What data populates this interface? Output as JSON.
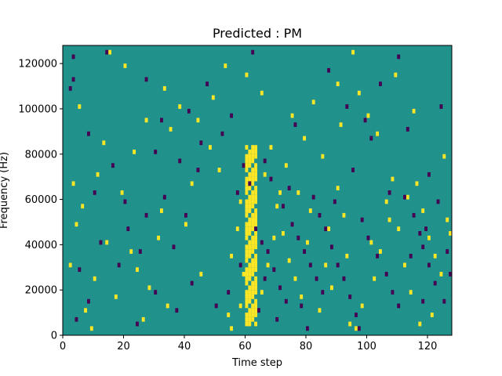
{
  "chart_data": {
    "type": "heatmap",
    "title": "Predicted : PM",
    "xlabel": "Time step",
    "ylabel": "Frequency (Hz)",
    "xlim": [
      0,
      128
    ],
    "ylim": [
      0,
      128000
    ],
    "x_ticks": [
      0,
      20,
      40,
      60,
      80,
      100,
      120
    ],
    "x_tick_labels": [
      "0",
      "20",
      "40",
      "60",
      "80",
      "100",
      "120"
    ],
    "y_ticks": [
      0,
      20000,
      40000,
      60000,
      80000,
      100000,
      120000
    ],
    "y_tick_labels": [
      "0",
      "20000",
      "40000",
      "60000",
      "80000",
      "100000",
      "120000"
    ],
    "grid": false,
    "colormap": "viridis",
    "colors": {
      "background": "#21918c",
      "high": "#fde725",
      "low": "#440154"
    },
    "background_value": 0,
    "n_time_steps": 128,
    "n_freq_bins": 64,
    "cell_size": {
      "time": 1,
      "frequency": 2000
    },
    "bright_run": {
      "t_start": 60,
      "t_end": 64,
      "f_start": 4000,
      "f_end": 84000
    },
    "dark_cells": [
      [
        3,
        122000
      ],
      [
        3,
        112000
      ],
      [
        2,
        108000
      ],
      [
        14,
        124000
      ],
      [
        27,
        112000
      ],
      [
        41,
        98000
      ],
      [
        32,
        94000
      ],
      [
        47,
        110000
      ],
      [
        55,
        96000
      ],
      [
        8,
        88000
      ],
      [
        30,
        80000
      ],
      [
        38,
        76000
      ],
      [
        44,
        72000
      ],
      [
        16,
        74000
      ],
      [
        10,
        62000
      ],
      [
        33,
        60000
      ],
      [
        27,
        52000
      ],
      [
        21,
        46000
      ],
      [
        12,
        40000
      ],
      [
        36,
        38000
      ],
      [
        25,
        36000
      ],
      [
        18,
        30000
      ],
      [
        5,
        28000
      ],
      [
        42,
        22000
      ],
      [
        30,
        18000
      ],
      [
        8,
        14000
      ],
      [
        50,
        12000
      ],
      [
        37,
        10000
      ],
      [
        4,
        6000
      ],
      [
        24,
        4000
      ],
      [
        57,
        62000
      ],
      [
        59,
        74000
      ],
      [
        66,
        76000
      ],
      [
        68,
        68000
      ],
      [
        72,
        56000
      ],
      [
        75,
        48000
      ],
      [
        77,
        42000
      ],
      [
        79,
        36000
      ],
      [
        81,
        30000
      ],
      [
        83,
        24000
      ],
      [
        85,
        18000
      ],
      [
        65,
        40000
      ],
      [
        67,
        36000
      ],
      [
        69,
        28000
      ],
      [
        71,
        20000
      ],
      [
        73,
        14000
      ],
      [
        70,
        6000
      ],
      [
        64,
        10000
      ],
      [
        86,
        46000
      ],
      [
        88,
        38000
      ],
      [
        90,
        30000
      ],
      [
        92,
        24000
      ],
      [
        94,
        16000
      ],
      [
        96,
        8000
      ],
      [
        97,
        2000
      ],
      [
        80,
        2000
      ],
      [
        82,
        60000
      ],
      [
        84,
        52000
      ],
      [
        100,
        42000
      ],
      [
        103,
        34000
      ],
      [
        106,
        26000
      ],
      [
        108,
        18000
      ],
      [
        110,
        12000
      ],
      [
        112,
        60000
      ],
      [
        115,
        52000
      ],
      [
        117,
        44000
      ],
      [
        118,
        38000
      ],
      [
        120,
        30000
      ],
      [
        122,
        22000
      ],
      [
        125,
        14000
      ],
      [
        127,
        26000
      ],
      [
        101,
        86000
      ],
      [
        99,
        94000
      ],
      [
        104,
        110000
      ],
      [
        110,
        122000
      ],
      [
        113,
        90000
      ],
      [
        120,
        70000
      ],
      [
        124,
        100000
      ],
      [
        93,
        100000
      ],
      [
        87,
        116000
      ],
      [
        76,
        92000
      ],
      [
        62,
        124000
      ],
      [
        52,
        88000
      ],
      [
        45,
        84000
      ],
      [
        54,
        18000
      ],
      [
        58,
        30000
      ],
      [
        61,
        66000
      ],
      [
        74,
        64000
      ],
      [
        95,
        72000
      ],
      [
        107,
        62000
      ],
      [
        114,
        34000
      ],
      [
        119,
        46000
      ],
      [
        123,
        58000
      ],
      [
        126,
        36000
      ],
      [
        118,
        14000
      ],
      [
        98,
        50000
      ],
      [
        89,
        58000
      ],
      [
        78,
        12000
      ],
      [
        66,
        24000
      ],
      [
        63,
        46000
      ],
      [
        40,
        52000
      ],
      [
        20,
        58000
      ]
    ],
    "bright_cells": [
      [
        15,
        124000
      ],
      [
        20,
        118000
      ],
      [
        33,
        108000
      ],
      [
        38,
        100000
      ],
      [
        53,
        118000
      ],
      [
        60,
        114000
      ],
      [
        49,
        104000
      ],
      [
        44,
        94000
      ],
      [
        5,
        100000
      ],
      [
        35,
        90000
      ],
      [
        23,
        80000
      ],
      [
        48,
        82000
      ],
      [
        11,
        70000
      ],
      [
        3,
        66000
      ],
      [
        19,
        62000
      ],
      [
        6,
        56000
      ],
      [
        32,
        54000
      ],
      [
        40,
        48000
      ],
      [
        14,
        40000
      ],
      [
        22,
        36000
      ],
      [
        2,
        30000
      ],
      [
        10,
        24000
      ],
      [
        28,
        20000
      ],
      [
        45,
        26000
      ],
      [
        17,
        16000
      ],
      [
        34,
        12000
      ],
      [
        7,
        10000
      ],
      [
        26,
        6000
      ],
      [
        9,
        2000
      ],
      [
        55,
        34000
      ],
      [
        57,
        46000
      ],
      [
        58,
        58000
      ],
      [
        66,
        70000
      ],
      [
        68,
        82000
      ],
      [
        70,
        56000
      ],
      [
        72,
        44000
      ],
      [
        74,
        32000
      ],
      [
        76,
        24000
      ],
      [
        78,
        16000
      ],
      [
        80,
        40000
      ],
      [
        84,
        10000
      ],
      [
        86,
        30000
      ],
      [
        88,
        20000
      ],
      [
        90,
        64000
      ],
      [
        92,
        52000
      ],
      [
        94,
        4000
      ],
      [
        96,
        2000
      ],
      [
        98,
        12000
      ],
      [
        102,
        24000
      ],
      [
        104,
        36000
      ],
      [
        106,
        58000
      ],
      [
        108,
        68000
      ],
      [
        110,
        46000
      ],
      [
        112,
        30000
      ],
      [
        114,
        18000
      ],
      [
        116,
        66000
      ],
      [
        118,
        54000
      ],
      [
        120,
        42000
      ],
      [
        122,
        34000
      ],
      [
        124,
        26000
      ],
      [
        126,
        50000
      ],
      [
        127,
        44000
      ],
      [
        121,
        8000
      ],
      [
        117,
        4000
      ],
      [
        100,
        96000
      ],
      [
        103,
        88000
      ],
      [
        95,
        124000
      ],
      [
        90,
        110000
      ],
      [
        82,
        102000
      ],
      [
        75,
        96000
      ],
      [
        65,
        106000
      ],
      [
        55,
        2000
      ],
      [
        58,
        12000
      ],
      [
        65,
        18000
      ],
      [
        67,
        30000
      ],
      [
        69,
        42000
      ],
      [
        71,
        62000
      ],
      [
        73,
        74000
      ],
      [
        79,
        86000
      ],
      [
        85,
        78000
      ],
      [
        91,
        92000
      ],
      [
        97,
        106000
      ],
      [
        109,
        114000
      ],
      [
        115,
        98000
      ],
      [
        125,
        78000
      ],
      [
        113,
        60000
      ],
      [
        107,
        50000
      ],
      [
        101,
        40000
      ],
      [
        93,
        34000
      ],
      [
        87,
        46000
      ],
      [
        81,
        54000
      ],
      [
        77,
        62000
      ],
      [
        63,
        50000
      ],
      [
        59,
        26000
      ],
      [
        54,
        8000
      ],
      [
        27,
        94000
      ],
      [
        13,
        84000
      ],
      [
        4,
        48000
      ],
      [
        24,
        28000
      ],
      [
        31,
        42000
      ],
      [
        42,
        66000
      ],
      [
        51,
        72000
      ]
    ]
  }
}
